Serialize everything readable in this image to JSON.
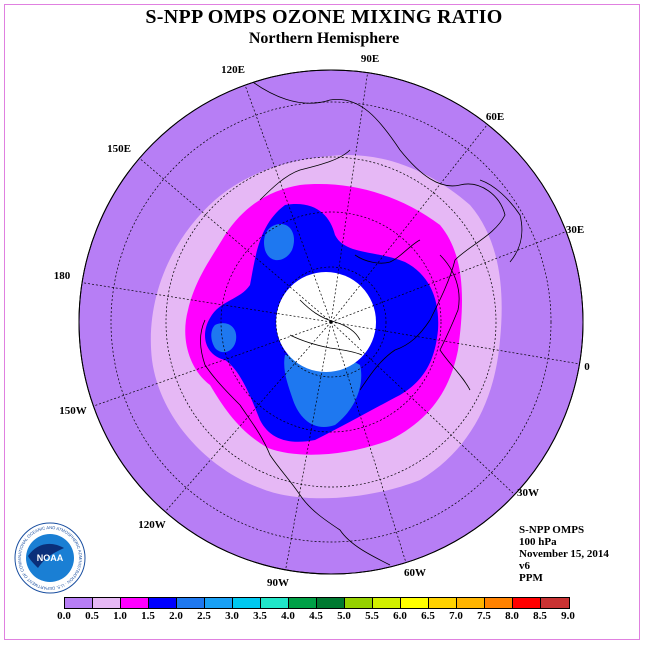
{
  "title": "S-NPP OMPS OZONE MIXING RATIO",
  "subtitle": "Northern Hemisphere",
  "info": {
    "instrument": "S-NPP OMPS",
    "level": "100 hPa",
    "date": "November 15, 2014",
    "version": "v6",
    "units": "PPM"
  },
  "longitude_labels": [
    "90E",
    "60E",
    "30E",
    "0",
    "30W",
    "60W",
    "90W",
    "120W",
    "150W",
    "180",
    "150E",
    "120E"
  ],
  "colorbar": {
    "ticks": [
      "0.0",
      "0.5",
      "1.0",
      "1.5",
      "2.0",
      "2.5",
      "3.0",
      "3.5",
      "4.0",
      "4.5",
      "5.0",
      "5.5",
      "6.0",
      "6.5",
      "7.0",
      "7.5",
      "8.0",
      "8.5",
      "9.0"
    ],
    "colors": [
      "#b77ef5",
      "#e6b8f5",
      "#ff00ff",
      "#0000ff",
      "#1e78f0",
      "#19a0f5",
      "#00c8f0",
      "#20e6c8",
      "#00a046",
      "#007a30",
      "#96d200",
      "#d2f000",
      "#ffff00",
      "#ffd200",
      "#ffb400",
      "#ff8200",
      "#ff0000",
      "#c83232"
    ]
  },
  "logo": {
    "text": "NOAA",
    "ring_text": "NATIONAL OCEANIC AND ATMOSPHERIC ADMINISTRATION · U.S. DEPARTMENT OF COMMERCE"
  }
}
